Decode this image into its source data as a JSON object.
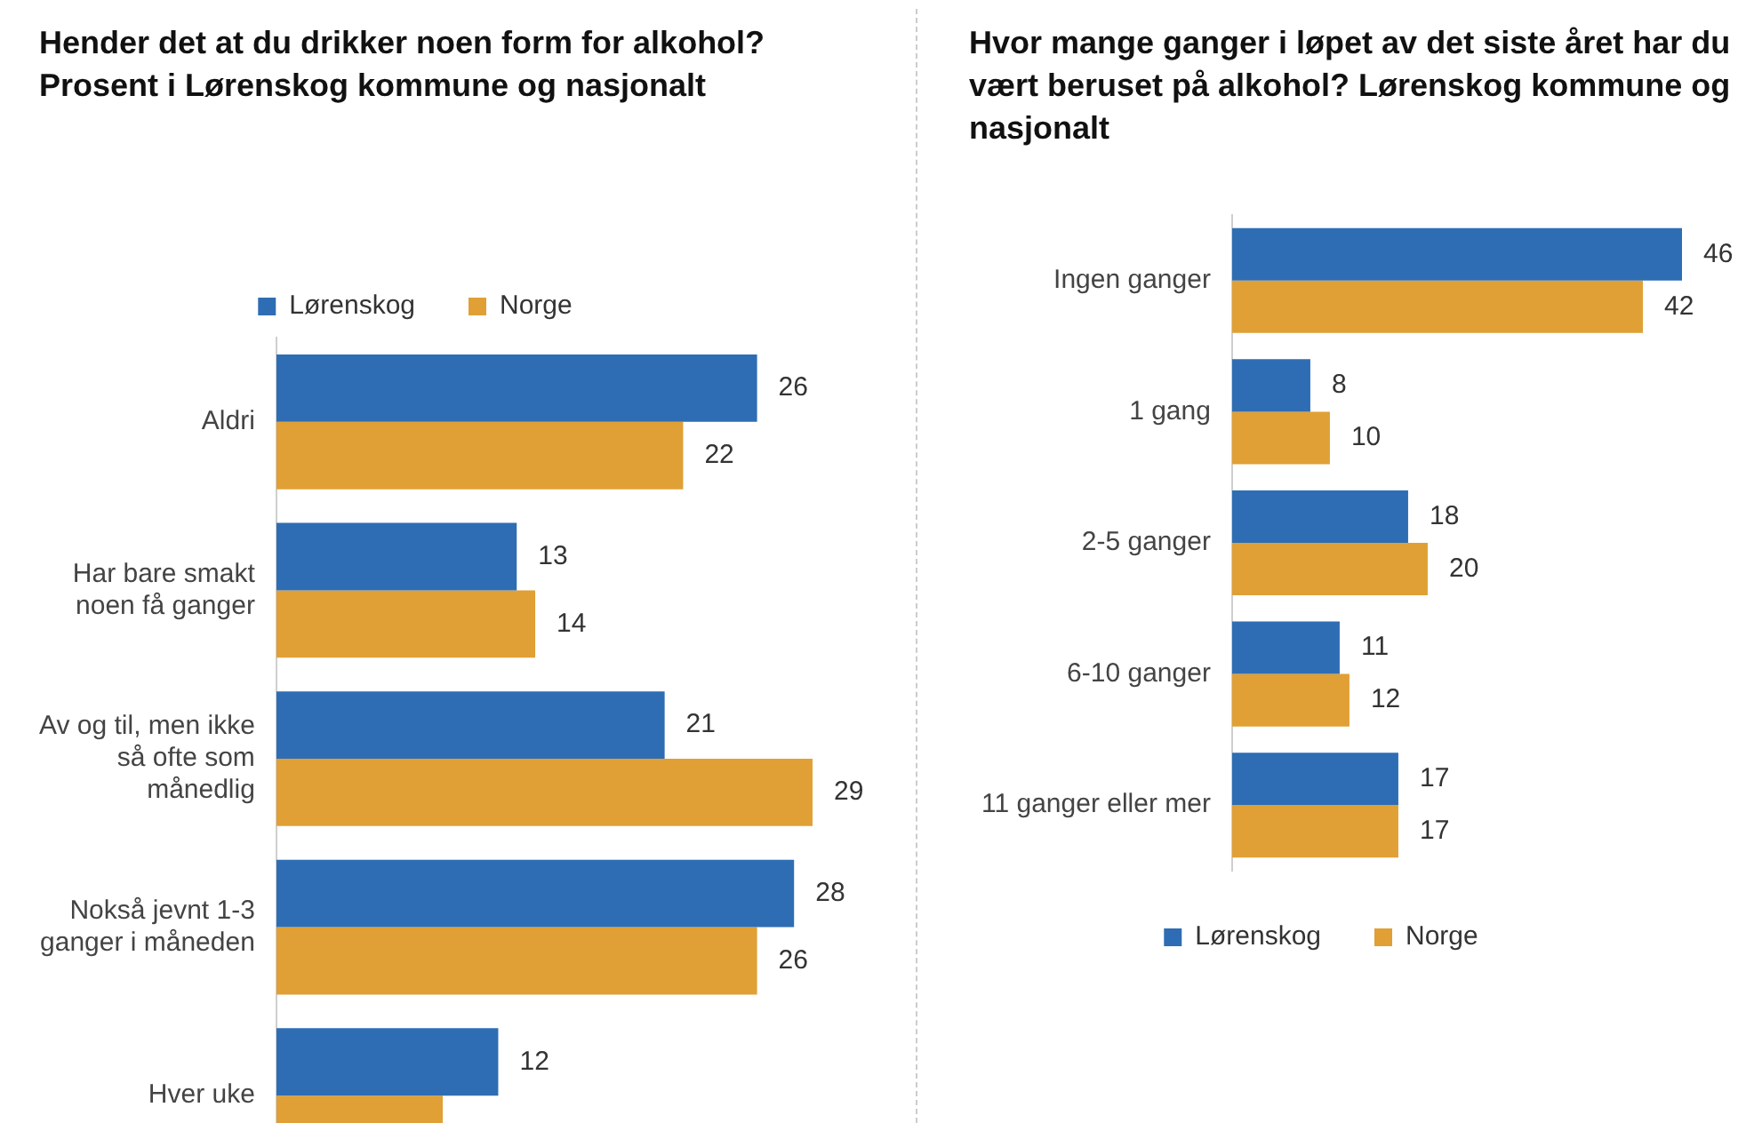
{
  "chart_data": [
    {
      "type": "bar",
      "orientation": "horizontal",
      "title": "Hender det at du drikker noen form for alkohol? Prosent i Lørenskog kommune og nasjonalt",
      "categories": [
        "Aldri",
        "Har bare smakt noen få ganger",
        "Av og til, men ikke så ofte som månedlig",
        "Nokså jevnt 1-3 ganger i måneden",
        "Hver uke"
      ],
      "series": [
        {
          "name": "Lørenskog",
          "color": "#2e6db4",
          "values": [
            26,
            13,
            21,
            28,
            12
          ],
          "value_labels": [
            "26",
            "13",
            "21",
            "28",
            "12"
          ]
        },
        {
          "name": "Norge",
          "color": "#e0a035",
          "values": [
            22,
            14,
            29,
            26,
            9
          ],
          "value_labels": [
            "22",
            "14",
            "29",
            "26",
            null
          ]
        }
      ],
      "legend": "top",
      "tick_labels": "y",
      "grid": false
    },
    {
      "type": "bar",
      "orientation": "horizontal",
      "title": "Hvor mange ganger i løpet av det siste året har du vært beruset på alkohol? Lørenskog kommune og nasjonalt",
      "categories": [
        "Ingen ganger",
        "1 gang",
        "2-5 ganger",
        "6-10 ganger",
        "11 ganger eller mer"
      ],
      "series": [
        {
          "name": "Lørenskog",
          "color": "#2e6db4",
          "values": [
            46,
            8,
            18,
            11,
            17
          ]
        },
        {
          "name": "Norge",
          "color": "#e0a035",
          "values": [
            42,
            10,
            20,
            12,
            17
          ]
        }
      ],
      "legend": "bottom",
      "tick_labels": "y",
      "grid": false,
      "data_labels": true
    }
  ]
}
